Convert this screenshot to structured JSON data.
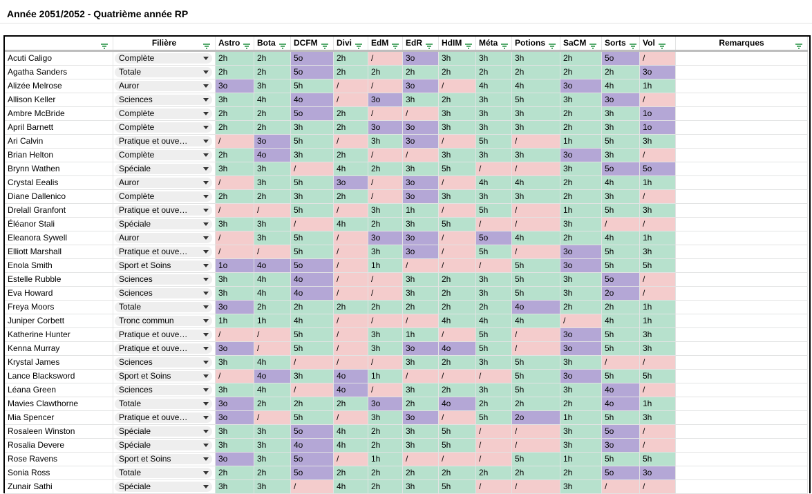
{
  "sheet": {
    "title": "Année 2051/2052 - Quatrième année RP",
    "headers": [
      "",
      "Filière",
      "Astro",
      "Bota",
      "DCFM",
      "Divi",
      "EdM",
      "EdR",
      "HdIM",
      "Méta",
      "Potions",
      "SaCM",
      "Sorts",
      "Vol",
      "Remarques"
    ],
    "colors": {
      "green": "#b7e1cd",
      "purple": "#b4a7d6",
      "pink": "#f4cccc",
      "chip": "#eeeeee"
    },
    "rows": [
      {
        "name": "Acuti Caligo",
        "filiere": "Complète",
        "grades": [
          "2h",
          "2h",
          "5o",
          "2h",
          "/",
          "3o",
          "3h",
          "3h",
          "3h",
          "2h",
          "5o",
          "/"
        ],
        "remarques": ""
      },
      {
        "name": "Agatha Sanders",
        "filiere": "Totale",
        "grades": [
          "2h",
          "2h",
          "5o",
          "2h",
          "2h",
          "2h",
          "2h",
          "2h",
          "2h",
          "2h",
          "2h",
          "3o"
        ],
        "remarques": ""
      },
      {
        "name": "Alizée Melrose",
        "filiere": "Auror",
        "grades": [
          "3o",
          "3h",
          "5h",
          "/",
          "/",
          "3o",
          "/",
          "4h",
          "4h",
          "3o",
          "4h",
          "1h"
        ],
        "remarques": ""
      },
      {
        "name": "Allison Keller",
        "filiere": "Sciences",
        "grades": [
          "3h",
          "4h",
          "4o",
          "/",
          "3o",
          "3h",
          "2h",
          "3h",
          "5h",
          "3h",
          "3o",
          "/"
        ],
        "remarques": ""
      },
      {
        "name": "Ambre McBride",
        "filiere": "Complète",
        "grades": [
          "2h",
          "2h",
          "5o",
          "2h",
          "/",
          "/",
          "3h",
          "3h",
          "3h",
          "2h",
          "3h",
          "1o"
        ],
        "remarques": ""
      },
      {
        "name": "April Barnett",
        "filiere": "Complète",
        "grades": [
          "2h",
          "2h",
          "3h",
          "2h",
          "3o",
          "3o",
          "3h",
          "3h",
          "3h",
          "2h",
          "3h",
          "1o"
        ],
        "remarques": ""
      },
      {
        "name": "Ari Calvin",
        "filiere": "Pratique et ouve…",
        "grades": [
          "/",
          "3o",
          "5h",
          "/",
          "3h",
          "3o",
          "/",
          "5h",
          "/",
          "1h",
          "5h",
          "3h"
        ],
        "remarques": ""
      },
      {
        "name": "Brian Helton",
        "filiere": "Complète",
        "grades": [
          "2h",
          "4o",
          "3h",
          "2h",
          "/",
          "/",
          "3h",
          "3h",
          "3h",
          "3o",
          "3h",
          "/"
        ],
        "remarques": ""
      },
      {
        "name": "Brynn Wathen",
        "filiere": "Spéciale",
        "grades": [
          "3h",
          "3h",
          "/",
          "4h",
          "2h",
          "3h",
          "5h",
          "/",
          "/",
          "3h",
          "5o",
          "5o"
        ],
        "remarques": ""
      },
      {
        "name": "Crystal Eealis",
        "filiere": "Auror",
        "grades": [
          "/",
          "3h",
          "5h",
          "3o",
          "/",
          "3o",
          "/",
          "4h",
          "4h",
          "2h",
          "4h",
          "1h"
        ],
        "remarques": ""
      },
      {
        "name": "Diane Dallenico",
        "filiere": "Complète",
        "grades": [
          "2h",
          "2h",
          "3h",
          "2h",
          "/",
          "3o",
          "3h",
          "3h",
          "3h",
          "2h",
          "3h",
          "/"
        ],
        "remarques": ""
      },
      {
        "name": "Drelall Granfont",
        "filiere": "Pratique et ouve…",
        "grades": [
          "/",
          "/",
          "5h",
          "/",
          "3h",
          "1h",
          "/",
          "5h",
          "/",
          "1h",
          "5h",
          "3h"
        ],
        "remarques": ""
      },
      {
        "name": "Éléanor Stali",
        "filiere": "Spéciale",
        "grades": [
          "3h",
          "3h",
          "/",
          "4h",
          "2h",
          "3h",
          "5h",
          "/",
          "/",
          "3h",
          "/",
          "/"
        ],
        "remarques": ""
      },
      {
        "name": "Eleanora Sywell",
        "filiere": "Auror",
        "grades": [
          "/",
          "3h",
          "5h",
          "/",
          "3o",
          "3o",
          "/",
          "5o",
          "4h",
          "2h",
          "4h",
          "1h"
        ],
        "remarques": ""
      },
      {
        "name": "Elliott Marshall",
        "filiere": "Pratique et ouve…",
        "grades": [
          "/",
          "/",
          "5h",
          "/",
          "3h",
          "3o",
          "/",
          "5h",
          "/",
          "3o",
          "5h",
          "3h"
        ],
        "remarques": ""
      },
      {
        "name": "Enola Smith",
        "filiere": "Sport et Soins",
        "grades": [
          "1o",
          "4o",
          "5o",
          "/",
          "1h",
          "/",
          "/",
          "/",
          "5h",
          "3o",
          "5h",
          "5h"
        ],
        "remarques": ""
      },
      {
        "name": "Estelle Rubble",
        "filiere": "Sciences",
        "grades": [
          "3h",
          "4h",
          "4o",
          "/",
          "/",
          "3h",
          "2h",
          "3h",
          "5h",
          "3h",
          "5o",
          "/"
        ],
        "remarques": ""
      },
      {
        "name": "Eva Howard",
        "filiere": "Sciences",
        "grades": [
          "3h",
          "4h",
          "4o",
          "/",
          "/",
          "3h",
          "2h",
          "3h",
          "5h",
          "3h",
          "2o",
          "/"
        ],
        "remarques": ""
      },
      {
        "name": "Freya Moors",
        "filiere": "Totale",
        "grades": [
          "3o",
          "2h",
          "2h",
          "2h",
          "2h",
          "2h",
          "2h",
          "2h",
          "4o",
          "2h",
          "2h",
          "1h"
        ],
        "remarques": ""
      },
      {
        "name": "Juniper Corbett",
        "filiere": "Tronc commun",
        "grades": [
          "1h",
          "1h",
          "4h",
          "/",
          "/",
          "/",
          "4h",
          "4h",
          "4h",
          "/",
          "4h",
          "1h"
        ],
        "remarques": ""
      },
      {
        "name": "Katherine Hunter",
        "filiere": "Pratique et ouve…",
        "grades": [
          "/",
          "/",
          "5h",
          "/",
          "3h",
          "1h",
          "/",
          "5h",
          "/",
          "3o",
          "5h",
          "3h"
        ],
        "remarques": ""
      },
      {
        "name": "Kenna Murray",
        "filiere": "Pratique et ouve…",
        "grades": [
          "3o",
          "/",
          "5h",
          "/",
          "3h",
          "3o",
          "4o",
          "5h",
          "/",
          "3o",
          "5h",
          "3h"
        ],
        "remarques": ""
      },
      {
        "name": "Krystal James",
        "filiere": "Sciences",
        "grades": [
          "3h",
          "4h",
          "/",
          "/",
          "/",
          "3h",
          "2h",
          "3h",
          "5h",
          "3h",
          "/",
          "/"
        ],
        "remarques": ""
      },
      {
        "name": "Lance Blacksword",
        "filiere": "Sport et Soins",
        "grades": [
          "/",
          "4o",
          "3h",
          "4o",
          "1h",
          "/",
          "/",
          "/",
          "5h",
          "3o",
          "5h",
          "5h"
        ],
        "remarques": ""
      },
      {
        "name": "Léana Green",
        "filiere": "Sciences",
        "grades": [
          "3h",
          "4h",
          "/",
          "4o",
          "/",
          "3h",
          "2h",
          "3h",
          "5h",
          "3h",
          "4o",
          "/"
        ],
        "remarques": ""
      },
      {
        "name": "Mavies Clawthorne",
        "filiere": "Totale",
        "grades": [
          "3o",
          "2h",
          "2h",
          "2h",
          "3o",
          "2h",
          "4o",
          "2h",
          "2h",
          "2h",
          "4o",
          "1h"
        ],
        "remarques": ""
      },
      {
        "name": "Mia Spencer",
        "filiere": "Pratique et ouve…",
        "grades": [
          "3o",
          "/",
          "5h",
          "/",
          "3h",
          "3o",
          "/",
          "5h",
          "2o",
          "1h",
          "5h",
          "3h"
        ],
        "remarques": ""
      },
      {
        "name": "Rosaleen Winston",
        "filiere": "Spéciale",
        "grades": [
          "3h",
          "3h",
          "5o",
          "4h",
          "2h",
          "3h",
          "5h",
          "/",
          "/",
          "3h",
          "5o",
          "/"
        ],
        "remarques": ""
      },
      {
        "name": "Rosalia Devere",
        "filiere": "Spéciale",
        "grades": [
          "3h",
          "3h",
          "4o",
          "4h",
          "2h",
          "3h",
          "5h",
          "/",
          "/",
          "3h",
          "3o",
          "/"
        ],
        "remarques": ""
      },
      {
        "name": "Rose Ravens",
        "filiere": "Sport et Soins",
        "grades": [
          "3o",
          "3h",
          "5o",
          "/",
          "1h",
          "/",
          "/",
          "/",
          "5h",
          "1h",
          "5h",
          "5h"
        ],
        "remarques": ""
      },
      {
        "name": "Sonia Ross",
        "filiere": "Totale",
        "grades": [
          "2h",
          "2h",
          "5o",
          "2h",
          "2h",
          "2h",
          "2h",
          "2h",
          "2h",
          "2h",
          "5o",
          "3o"
        ],
        "remarques": ""
      },
      {
        "name": "Zunair Sathi",
        "filiere": "Spéciale",
        "grades": [
          "3h",
          "3h",
          "/",
          "4h",
          "2h",
          "3h",
          "5h",
          "/",
          "/",
          "3h",
          "/",
          "/"
        ],
        "remarques": ""
      }
    ]
  }
}
